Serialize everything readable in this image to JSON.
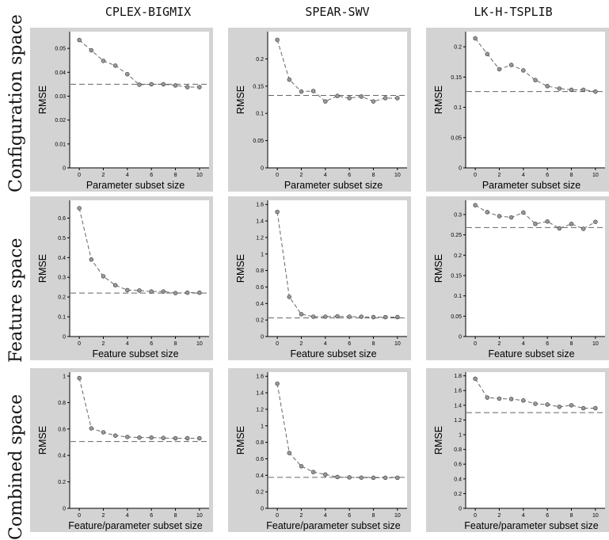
{
  "column_titles": [
    "CPLEX-BIGMIX",
    "SPEAR-SWV",
    "LK-H-TSPLIB"
  ],
  "row_labels": [
    "Configuration space",
    "Feature space",
    "Combined space"
  ],
  "style": {
    "panel_background": "#d3d3d3",
    "plot_background": "#ffffff",
    "line_color": "#666666",
    "marker_fill": "#999999",
    "reference_line_color": "#666666"
  },
  "chart_data": [
    {
      "type": "line",
      "row": 0,
      "col": 0,
      "xlabel": "Parameter subset size",
      "ylabel": "RMSE",
      "x": [
        0,
        1,
        2,
        3,
        4,
        5,
        6,
        7,
        8,
        9,
        10
      ],
      "values": [
        0.0535,
        0.0492,
        0.0448,
        0.0428,
        0.0392,
        0.0348,
        0.035,
        0.035,
        0.0345,
        0.0338,
        0.0338
      ],
      "reference": 0.035,
      "ylim": [
        0,
        0.057
      ],
      "yticks": [
        0,
        0.01,
        0.02,
        0.03,
        0.04,
        0.05
      ],
      "ytick_labels": [
        "0",
        "0.01",
        "0.02",
        "0.03",
        "0.04",
        "0.05"
      ],
      "xticks": [
        0,
        2,
        4,
        6,
        8,
        10
      ],
      "xtick_labels": [
        "0",
        "2",
        "4",
        "6",
        "8",
        "10"
      ]
    },
    {
      "type": "line",
      "row": 0,
      "col": 1,
      "xlabel": "Parameter subset size",
      "ylabel": "RMSE",
      "x": [
        0,
        1,
        2,
        3,
        4,
        5,
        6,
        7,
        8,
        9,
        10
      ],
      "values": [
        0.235,
        0.162,
        0.14,
        0.141,
        0.122,
        0.132,
        0.128,
        0.131,
        0.122,
        0.128,
        0.128
      ],
      "reference": 0.133,
      "ylim": [
        0,
        0.25
      ],
      "yticks": [
        0,
        0.05,
        0.1,
        0.15,
        0.2
      ],
      "ytick_labels": [
        "0",
        "0.05",
        "0.1",
        "0.15",
        "0.2"
      ],
      "xticks": [
        0,
        2,
        4,
        6,
        8,
        10
      ],
      "xtick_labels": [
        "0",
        "2",
        "4",
        "6",
        "8",
        "10"
      ]
    },
    {
      "type": "line",
      "row": 0,
      "col": 2,
      "xlabel": "Parameter subset size",
      "ylabel": "RMSE",
      "x": [
        0,
        1,
        2,
        3,
        4,
        5,
        6,
        7,
        8,
        9,
        10
      ],
      "values": [
        0.214,
        0.188,
        0.163,
        0.17,
        0.161,
        0.145,
        0.135,
        0.131,
        0.129,
        0.129,
        0.126
      ],
      "reference": 0.126,
      "ylim": [
        0,
        0.225
      ],
      "yticks": [
        0,
        0.05,
        0.1,
        0.15,
        0.2
      ],
      "ytick_labels": [
        "0",
        "0.05",
        "0.1",
        "0.15",
        "0.2"
      ],
      "xticks": [
        0,
        2,
        4,
        6,
        8,
        10
      ],
      "xtick_labels": [
        "0",
        "2",
        "4",
        "6",
        "8",
        "10"
      ]
    },
    {
      "type": "line",
      "row": 1,
      "col": 0,
      "xlabel": "Feature subset size",
      "ylabel": "RMSE",
      "x": [
        0,
        1,
        2,
        3,
        4,
        5,
        6,
        7,
        8,
        9,
        10
      ],
      "values": [
        0.65,
        0.39,
        0.305,
        0.26,
        0.235,
        0.233,
        0.228,
        0.228,
        0.22,
        0.222,
        0.222
      ],
      "reference": 0.22,
      "ylim": [
        0,
        0.69
      ],
      "yticks": [
        0,
        0.1,
        0.2,
        0.3,
        0.4,
        0.5,
        0.6
      ],
      "ytick_labels": [
        "0",
        "0.1",
        "0.2",
        "0.3",
        "0.4",
        "0.5",
        "0.6"
      ],
      "xticks": [
        0,
        2,
        4,
        6,
        8,
        10
      ],
      "xtick_labels": [
        "0",
        "2",
        "4",
        "6",
        "8",
        "10"
      ]
    },
    {
      "type": "line",
      "row": 1,
      "col": 1,
      "xlabel": "Feature subset size",
      "ylabel": "RMSE",
      "x": [
        0,
        1,
        2,
        3,
        4,
        5,
        6,
        7,
        8,
        9,
        10
      ],
      "values": [
        1.51,
        0.48,
        0.27,
        0.24,
        0.24,
        0.245,
        0.24,
        0.24,
        0.235,
        0.235,
        0.235
      ],
      "reference": 0.225,
      "ylim": [
        0,
        1.65
      ],
      "yticks": [
        0,
        0.2,
        0.4,
        0.6,
        0.8,
        1,
        1.2,
        1.4,
        1.6
      ],
      "ytick_labels": [
        "0",
        "0.2",
        "0.4",
        "0.6",
        "0.8",
        "1",
        "1.2",
        "1.4",
        "1.6"
      ],
      "xticks": [
        0,
        2,
        4,
        6,
        8,
        10
      ],
      "xtick_labels": [
        "0",
        "2",
        "4",
        "6",
        "8",
        "10"
      ]
    },
    {
      "type": "line",
      "row": 1,
      "col": 2,
      "xlabel": "Feature subset size",
      "ylabel": "RMSE",
      "x": [
        0,
        1,
        2,
        3,
        4,
        5,
        6,
        7,
        8,
        9,
        10
      ],
      "values": [
        0.323,
        0.306,
        0.296,
        0.293,
        0.305,
        0.277,
        0.283,
        0.266,
        0.277,
        0.265,
        0.282
      ],
      "reference": 0.268,
      "ylim": [
        0,
        0.335
      ],
      "yticks": [
        0,
        0.05,
        0.1,
        0.15,
        0.2,
        0.25,
        0.3
      ],
      "ytick_labels": [
        "0",
        "0.05",
        "0.1",
        "0.15",
        "0.2",
        "0.25",
        "0.3"
      ],
      "xticks": [
        0,
        2,
        4,
        6,
        8,
        10
      ],
      "xtick_labels": [
        "0",
        "2",
        "4",
        "6",
        "8",
        "10"
      ]
    },
    {
      "type": "line",
      "row": 2,
      "col": 0,
      "xlabel": "Feature/parameter subset size",
      "ylabel": "RMSE",
      "x": [
        0,
        1,
        2,
        3,
        4,
        5,
        6,
        7,
        8,
        9,
        10
      ],
      "values": [
        0.985,
        0.605,
        0.575,
        0.55,
        0.54,
        0.535,
        0.535,
        0.532,
        0.53,
        0.53,
        0.53
      ],
      "reference": 0.505,
      "ylim": [
        0,
        1.03
      ],
      "yticks": [
        0,
        0.2,
        0.4,
        0.6,
        0.8,
        1
      ],
      "ytick_labels": [
        "0",
        "0.2",
        "0.4",
        "0.6",
        "0.8",
        "1"
      ],
      "xticks": [
        0,
        2,
        4,
        6,
        8,
        10
      ],
      "xtick_labels": [
        "0",
        "2",
        "4",
        "6",
        "8",
        "10"
      ]
    },
    {
      "type": "line",
      "row": 2,
      "col": 1,
      "xlabel": "Feature/parameter subset size",
      "ylabel": "RMSE",
      "x": [
        0,
        1,
        2,
        3,
        4,
        5,
        6,
        7,
        8,
        9,
        10
      ],
      "values": [
        1.51,
        0.67,
        0.51,
        0.44,
        0.41,
        0.38,
        0.375,
        0.372,
        0.37,
        0.37,
        0.37
      ],
      "reference": 0.375,
      "ylim": [
        0,
        1.65
      ],
      "yticks": [
        0,
        0.2,
        0.4,
        0.6,
        0.8,
        1,
        1.2,
        1.4,
        1.6
      ],
      "ytick_labels": [
        "0",
        "0.2",
        "0.4",
        "0.6",
        "0.8",
        "1",
        "1.2",
        "1.4",
        "1.6"
      ],
      "xticks": [
        0,
        2,
        4,
        6,
        8,
        10
      ],
      "xtick_labels": [
        "0",
        "2",
        "4",
        "6",
        "8",
        "10"
      ]
    },
    {
      "type": "line",
      "row": 2,
      "col": 2,
      "xlabel": "Feature/parameter subset size",
      "ylabel": "RMSE",
      "x": [
        0,
        1,
        2,
        3,
        4,
        5,
        6,
        7,
        8,
        9,
        10
      ],
      "values": [
        1.76,
        1.505,
        1.49,
        1.485,
        1.465,
        1.42,
        1.41,
        1.38,
        1.4,
        1.36,
        1.36
      ],
      "reference": 1.3,
      "ylim": [
        0,
        1.85
      ],
      "yticks": [
        0,
        0.2,
        0.4,
        0.6,
        0.8,
        1,
        1.2,
        1.4,
        1.6,
        1.8
      ],
      "ytick_labels": [
        "0",
        "0.2",
        "0.4",
        "0.6",
        "0.8",
        "1",
        "1.2",
        "1.4",
        "1.6",
        "1.8"
      ],
      "xticks": [
        0,
        2,
        4,
        6,
        8,
        10
      ],
      "xtick_labels": [
        "0",
        "2",
        "4",
        "6",
        "8",
        "10"
      ]
    }
  ]
}
